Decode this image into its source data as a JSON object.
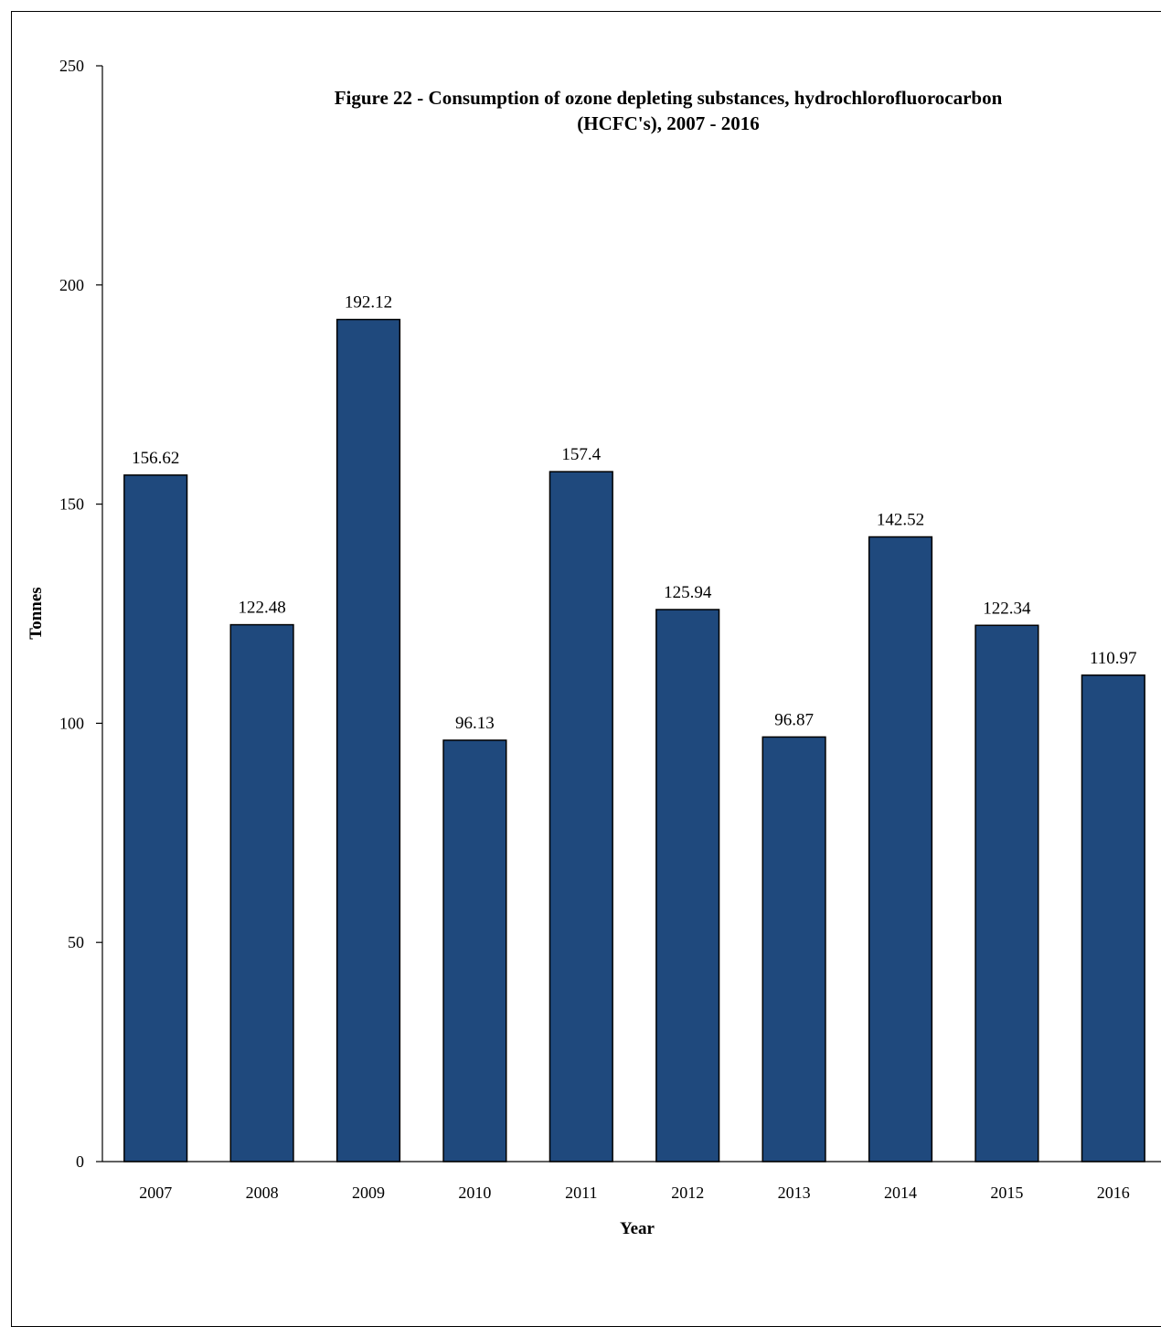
{
  "chart_data": {
    "type": "bar",
    "title_lines": [
      "Figure 22 - Consumption of ozone depleting substances, hydrochlorofluorocarbon",
      "(HCFC's), 2007 - 2016"
    ],
    "xlabel": "Year",
    "ylabel": "Tonnes",
    "categories": [
      "2007",
      "2008",
      "2009",
      "2010",
      "2011",
      "2012",
      "2013",
      "2014",
      "2015",
      "2016"
    ],
    "values": [
      156.62,
      122.48,
      192.12,
      96.13,
      157.4,
      125.94,
      96.87,
      142.52,
      122.34,
      110.97
    ],
    "value_labels": [
      "156.62",
      "122.48",
      "192.12",
      "96.13",
      "157.4",
      "125.94",
      "96.87",
      "142.52",
      "122.34",
      "110.97"
    ],
    "ylim": [
      0,
      250
    ],
    "yticks": [
      0,
      50,
      100,
      150,
      200,
      250
    ],
    "grid": false,
    "legend": "none",
    "bar_color": "#1F497D",
    "bar_edge_color": "#000000"
  }
}
